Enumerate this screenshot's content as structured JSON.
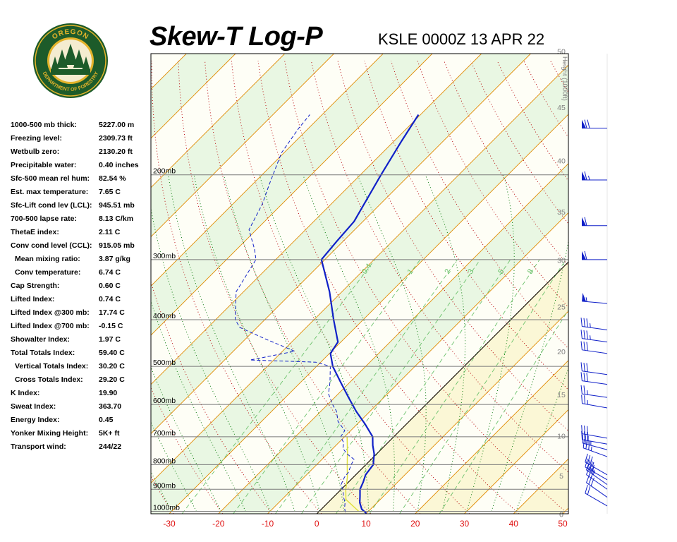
{
  "header": {
    "title": "Skew-T Log-P",
    "station": "KSLE 0000Z 13 APR 22"
  },
  "logo": {
    "top_text": "OREGON",
    "bottom_text": "DEPARTMENT OF FORESTRY",
    "colors": {
      "ring": "#1d5b2a",
      "gold": "#e3b32a",
      "tree": "#1d5b2a"
    }
  },
  "indices": [
    {
      "label": "1000-500 mb thick:",
      "value": "5227.00 m",
      "indent": false
    },
    {
      "label": "Freezing level:",
      "value": "2309.73 ft",
      "indent": false
    },
    {
      "label": "Wetbulb zero:",
      "value": "2130.20 ft",
      "indent": false
    },
    {
      "label": "Precipitable water:",
      "value": "0.40 inches",
      "indent": false
    },
    {
      "label": "Sfc-500 mean rel hum:",
      "value": "82.54 %",
      "indent": false
    },
    {
      "label": "Est. max temperature:",
      "value": "7.65 C",
      "indent": false
    },
    {
      "label": "Sfc-Lift cond lev (LCL):",
      "value": "945.51 mb",
      "indent": false
    },
    {
      "label": "700-500 lapse rate:",
      "value": "8.13 C/km",
      "indent": false
    },
    {
      "label": "ThetaE index:",
      "value": "2.11 C",
      "indent": false
    },
    {
      "label": "Conv cond level (CCL):",
      "value": "915.05 mb",
      "indent": false
    },
    {
      "label": "Mean mixing ratio:",
      "value": "3.87 g/kg",
      "indent": true
    },
    {
      "label": "Conv temperature:",
      "value": "6.74 C",
      "indent": true
    },
    {
      "label": "Cap Strength:",
      "value": "0.60 C",
      "indent": false
    },
    {
      "label": "Lifted Index:",
      "value": "0.74 C",
      "indent": false
    },
    {
      "label": "Lifted Index @300 mb:",
      "value": "17.74 C",
      "indent": false
    },
    {
      "label": "Lifted Index @700 mb:",
      "value": "-0.15 C",
      "indent": false
    },
    {
      "label": "Showalter Index:",
      "value": "1.97 C",
      "indent": false
    },
    {
      "label": "Total Totals Index:",
      "value": "59.40 C",
      "indent": false
    },
    {
      "label": "Vertical Totals Index:",
      "value": "30.20 C",
      "indent": true
    },
    {
      "label": "Cross Totals Index:",
      "value": "29.20 C",
      "indent": true
    },
    {
      "label": "K Index:",
      "value": "19.90",
      "indent": false
    },
    {
      "label": "Sweat Index:",
      "value": "363.70",
      "indent": false
    },
    {
      "label": "Energy Index:",
      "value": "0.45",
      "indent": false
    },
    {
      "label": "Yonker Mixing Height:",
      "value": "5K+ ft",
      "indent": false
    },
    {
      "label": "Transport wind:",
      "value": "244/22",
      "indent": false
    }
  ],
  "chart_data": {
    "type": "line",
    "x_ticks": [
      -30,
      -20,
      -10,
      0,
      10,
      20,
      30,
      40,
      50
    ],
    "xlim": [
      -30,
      50
    ],
    "pressure_levels": [
      {
        "p": 200,
        "label": "200mb"
      },
      {
        "p": 300,
        "label": "300mb"
      },
      {
        "p": 400,
        "label": "400mb"
      },
      {
        "p": 500,
        "label": "500mb"
      },
      {
        "p": 600,
        "label": "600mb"
      },
      {
        "p": 700,
        "label": "700mb"
      },
      {
        "p": 800,
        "label": "800mb"
      },
      {
        "p": 900,
        "label": "900mb"
      },
      {
        "p": 1000,
        "label": "1000mb"
      }
    ],
    "height_axis": {
      "title": "Height (1000ft)",
      "ticks": [
        0,
        5,
        10,
        15,
        20,
        25,
        30,
        35,
        40,
        45,
        50
      ]
    },
    "mixing_ratio_labels": [
      "0.4",
      "1",
      "2",
      "3",
      "5",
      "8"
    ],
    "temperature_profile": {
      "color": "#1020c8",
      "points": [
        {
          "p": 1010,
          "t": 10.0
        },
        {
          "p": 990,
          "t": 8.2
        },
        {
          "p": 960,
          "t": 6.5
        },
        {
          "p": 930,
          "t": 5.2
        },
        {
          "p": 900,
          "t": 3.8
        },
        {
          "p": 870,
          "t": 3.0
        },
        {
          "p": 840,
          "t": 2.0
        },
        {
          "p": 800,
          "t": 1.5
        },
        {
          "p": 760,
          "t": -0.5
        },
        {
          "p": 730,
          "t": -2.5
        },
        {
          "p": 700,
          "t": -4.3
        },
        {
          "p": 660,
          "t": -8.3
        },
        {
          "p": 620,
          "t": -12.8
        },
        {
          "p": 580,
          "t": -17.2
        },
        {
          "p": 540,
          "t": -21.8
        },
        {
          "p": 500,
          "t": -26.7
        },
        {
          "p": 470,
          "t": -29.8
        },
        {
          "p": 445,
          "t": -30.6
        },
        {
          "p": 400,
          "t": -36.0
        },
        {
          "p": 350,
          "t": -42.5
        },
        {
          "p": 300,
          "t": -50.7
        },
        {
          "p": 275,
          "t": -51.3
        },
        {
          "p": 250,
          "t": -51.8
        },
        {
          "p": 200,
          "t": -55.8
        },
        {
          "p": 170,
          "t": -58.5
        },
        {
          "p": 150,
          "t": -60.4
        }
      ]
    },
    "dewpoint_profile": {
      "color": "#1020c8",
      "points": [
        {
          "p": 1005,
          "t": 5.5
        },
        {
          "p": 985,
          "t": 4.5
        },
        {
          "p": 960,
          "t": 3.5
        },
        {
          "p": 930,
          "t": 1.8
        },
        {
          "p": 905,
          "t": 0.6
        },
        {
          "p": 880,
          "t": -1.0
        },
        {
          "p": 850,
          "t": -1.8
        },
        {
          "p": 830,
          "t": -2.0
        },
        {
          "p": 800,
          "t": -3.0
        },
        {
          "p": 780,
          "t": -3.5
        },
        {
          "p": 760,
          "t": -6.0
        },
        {
          "p": 740,
          "t": -8.0
        },
        {
          "p": 720,
          "t": -9.0
        },
        {
          "p": 700,
          "t": -10.8
        },
        {
          "p": 680,
          "t": -11.2
        },
        {
          "p": 650,
          "t": -14.5
        },
        {
          "p": 620,
          "t": -16.8
        },
        {
          "p": 600,
          "t": -19.0
        },
        {
          "p": 570,
          "t": -22.0
        },
        {
          "p": 540,
          "t": -24.0
        },
        {
          "p": 500,
          "t": -27.2
        },
        {
          "p": 490,
          "t": -31.0
        },
        {
          "p": 485,
          "t": -44.8
        },
        {
          "p": 480,
          "t": -43.0
        },
        {
          "p": 465,
          "t": -37.5
        },
        {
          "p": 440,
          "t": -45.5
        },
        {
          "p": 415,
          "t": -53.5
        },
        {
          "p": 400,
          "t": -56.0
        },
        {
          "p": 350,
          "t": -61.5
        },
        {
          "p": 300,
          "t": -64.0
        },
        {
          "p": 285,
          "t": -66.5
        },
        {
          "p": 260,
          "t": -71.5
        },
        {
          "p": 230,
          "t": -74.0
        },
        {
          "p": 210,
          "t": -76.5
        },
        {
          "p": 180,
          "t": -80.5
        },
        {
          "p": 160,
          "t": -82.0
        },
        {
          "p": 150,
          "t": -82.5
        }
      ]
    },
    "parcel_trace": {
      "color": "#e0e040",
      "points": [
        {
          "p": 1000,
          "t": 8.0
        },
        {
          "p": 945,
          "t": 3.0
        },
        {
          "p": 900,
          "t": 0.9
        },
        {
          "p": 850,
          "t": -1.2
        },
        {
          "p": 800,
          "t": -3.8
        },
        {
          "p": 750,
          "t": -6.5
        },
        {
          "p": 700,
          "t": -9.5
        }
      ]
    },
    "wind_barbs": [
      {
        "p": 975,
        "direction": 240,
        "speed_kt": 20
      },
      {
        "p": 935,
        "direction": 235,
        "speed_kt": 30
      },
      {
        "p": 900,
        "direction": 235,
        "speed_kt": 30
      },
      {
        "p": 880,
        "direction": 235,
        "speed_kt": 35
      },
      {
        "p": 860,
        "direction": 240,
        "speed_kt": 35
      },
      {
        "p": 840,
        "direction": 240,
        "speed_kt": 35
      },
      {
        "p": 770,
        "direction": 250,
        "speed_kt": 35
      },
      {
        "p": 745,
        "direction": 255,
        "speed_kt": 35
      },
      {
        "p": 725,
        "direction": 260,
        "speed_kt": 30
      },
      {
        "p": 705,
        "direction": 260,
        "speed_kt": 30
      },
      {
        "p": 610,
        "direction": 260,
        "speed_kt": 25
      },
      {
        "p": 580,
        "direction": 262,
        "speed_kt": 25
      },
      {
        "p": 545,
        "direction": 262,
        "speed_kt": 30
      },
      {
        "p": 520,
        "direction": 262,
        "speed_kt": 30
      },
      {
        "p": 470,
        "direction": 262,
        "speed_kt": 30
      },
      {
        "p": 445,
        "direction": 262,
        "speed_kt": 35
      },
      {
        "p": 420,
        "direction": 262,
        "speed_kt": 35
      },
      {
        "p": 370,
        "direction": 265,
        "speed_kt": 55
      },
      {
        "p": 300,
        "direction": 270,
        "speed_kt": 60
      },
      {
        "p": 255,
        "direction": 270,
        "speed_kt": 60
      },
      {
        "p": 205,
        "direction": 270,
        "speed_kt": 65
      },
      {
        "p": 160,
        "direction": 270,
        "speed_kt": 70
      }
    ]
  }
}
